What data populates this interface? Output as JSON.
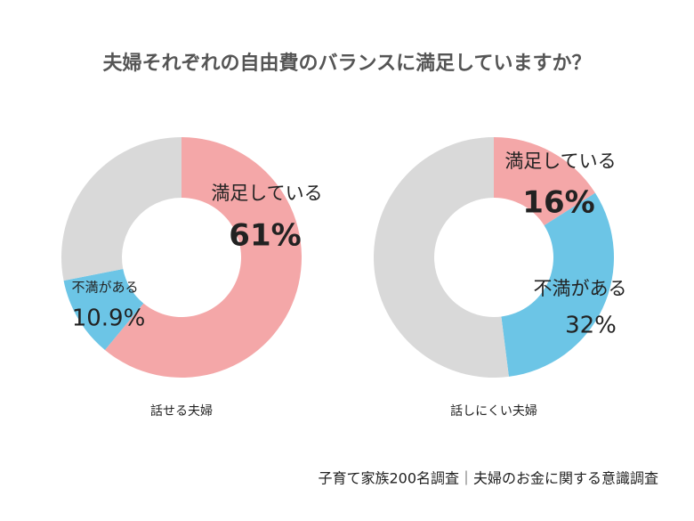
{
  "title": "夫婦それぞれの自由費のバランスに満足していますか？",
  "source": "子育て家族200名調査｜夫婦のお金に関する意識調査",
  "chart_data": [
    {
      "type": "donut",
      "label": "話せる夫婦",
      "categories": [
        "満足している",
        "不満がある",
        null
      ],
      "values": [
        61,
        10.9,
        28.1
      ],
      "value_labels": [
        "61%",
        "10.9%",
        null
      ],
      "colors": [
        "#f4a7a8",
        "#6cc5e6",
        "#d9d9d9"
      ]
    },
    {
      "type": "donut",
      "label": "話しにくい夫婦",
      "categories": [
        "満足している",
        "不満がある",
        null
      ],
      "values": [
        16,
        32,
        52
      ],
      "value_labels": [
        "16%",
        "32%",
        null
      ],
      "colors": [
        "#f4a7a8",
        "#6cc5e6",
        "#d9d9d9"
      ]
    }
  ]
}
